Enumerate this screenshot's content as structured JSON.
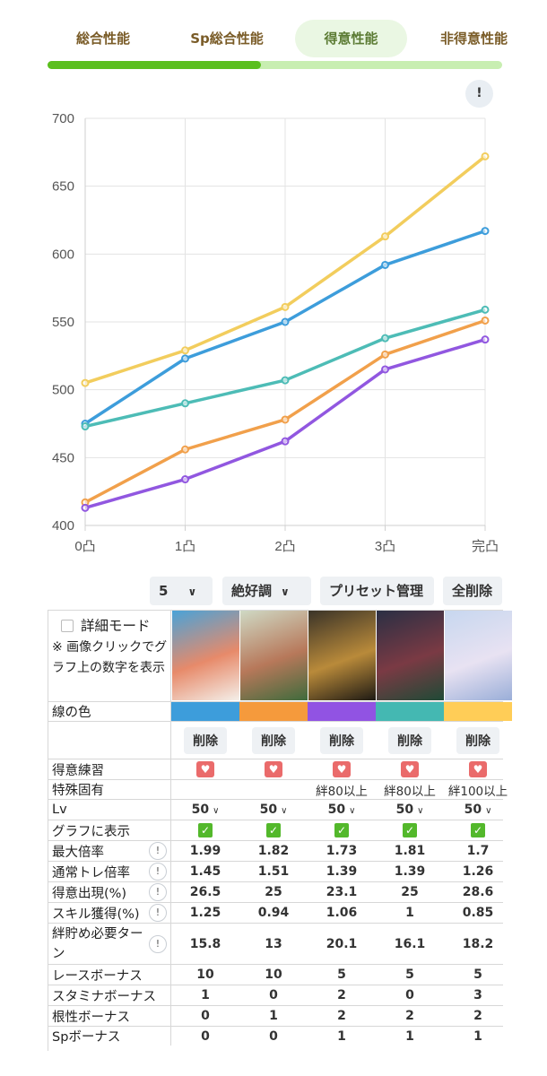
{
  "tabs": [
    {
      "label": "総合性能",
      "active": false
    },
    {
      "label": "Sp総合性能",
      "active": false
    },
    {
      "label": "得意性能",
      "active": true
    },
    {
      "label": "非得意性能",
      "active": false
    }
  ],
  "progress": {
    "fraction": 0.47
  },
  "info_button": "!",
  "chart_data": {
    "type": "line",
    "x": [
      "0凸",
      "1凸",
      "2凸",
      "3凸",
      "完凸"
    ],
    "ylim": [
      400,
      700
    ],
    "yticks": [
      400,
      450,
      500,
      550,
      600,
      650,
      700
    ],
    "grid": true,
    "series": [
      {
        "color": "#f2cd5d",
        "values": [
          505,
          529,
          561,
          613,
          672
        ]
      },
      {
        "color": "#3d9ddb",
        "values": [
          475,
          523,
          550,
          592,
          617
        ]
      },
      {
        "color": "#4dbcb6",
        "values": [
          473,
          490,
          507,
          538,
          559
        ]
      },
      {
        "color": "#f1a04b",
        "values": [
          417,
          456,
          478,
          526,
          551
        ]
      },
      {
        "color": "#9157e0",
        "values": [
          413,
          434,
          462,
          515,
          537
        ]
      }
    ]
  },
  "toolbar": {
    "level_select": "5",
    "condition_select": "絶好調",
    "preset_label": "プリセット管理",
    "clear_all_label": "全削除"
  },
  "table": {
    "detail_mode_label": "詳細モード",
    "hint_text": "※ 画像クリックでグラフ上の数字を表示",
    "line_color_label": "線の色",
    "delete_label": "削除",
    "columns": [
      {
        "line_color": "#3d9ddb",
        "card_colors": [
          "#4aa3d8",
          "#e78a6a",
          "#f4efe9"
        ],
        "specialty": "heart",
        "unique": "",
        "lv": "50",
        "show": true,
        "max_multiplier": "1.99",
        "normal_multiplier": "1.45",
        "specialty_rate": "26.5",
        "skill_gain": "1.25",
        "bond_turns": "15.8",
        "race_bonus": "10",
        "stamina_bonus": "1",
        "guts_bonus": "0",
        "sp_bonus": "0"
      },
      {
        "line_color": "#f59a3c",
        "card_colors": [
          "#cfd9c4",
          "#b7785a",
          "#3f6b3c"
        ],
        "specialty": "heart",
        "unique": "",
        "lv": "50",
        "show": true,
        "max_multiplier": "1.82",
        "normal_multiplier": "1.51",
        "specialty_rate": "25",
        "skill_gain": "0.94",
        "bond_turns": "13",
        "race_bonus": "10",
        "stamina_bonus": "0",
        "guts_bonus": "1",
        "sp_bonus": "0"
      },
      {
        "line_color": "#9153e3",
        "card_colors": [
          "#3a3328",
          "#b98a3a",
          "#1e1a14"
        ],
        "specialty": "heart",
        "unique": "絆80以上",
        "lv": "50",
        "show": true,
        "max_multiplier": "1.73",
        "normal_multiplier": "1.39",
        "specialty_rate": "23.1",
        "skill_gain": "1.06",
        "bond_turns": "20.1",
        "race_bonus": "5",
        "stamina_bonus": "2",
        "guts_bonus": "2",
        "sp_bonus": "1"
      },
      {
        "line_color": "#44b8b2",
        "card_colors": [
          "#2a2f44",
          "#7a3a44",
          "#1f4a36"
        ],
        "specialty": "heart",
        "unique": "絆80以上",
        "lv": "50",
        "show": true,
        "max_multiplier": "1.81",
        "normal_multiplier": "1.39",
        "specialty_rate": "25",
        "skill_gain": "1",
        "bond_turns": "16.1",
        "race_bonus": "5",
        "stamina_bonus": "0",
        "guts_bonus": "2",
        "sp_bonus": "1"
      },
      {
        "line_color": "#ffcd57",
        "card_colors": [
          "#c7d7ef",
          "#e8e2f2",
          "#9aaed8"
        ],
        "specialty": "heart",
        "unique": "絆100以上",
        "lv": "50",
        "show": true,
        "max_multiplier": "1.7",
        "normal_multiplier": "1.26",
        "specialty_rate": "28.6",
        "skill_gain": "0.85",
        "bond_turns": "18.2",
        "race_bonus": "5",
        "stamina_bonus": "3",
        "guts_bonus": "2",
        "sp_bonus": "1"
      }
    ],
    "rows": [
      {
        "key": "specialty",
        "label": "得意練習",
        "info": false
      },
      {
        "key": "unique",
        "label": "特殊固有",
        "info": false
      },
      {
        "key": "lv",
        "label": "Lv",
        "info": false
      },
      {
        "key": "show",
        "label": "グラフに表示",
        "info": false
      },
      {
        "key": "max_multiplier",
        "label": "最大倍率",
        "info": true
      },
      {
        "key": "normal_multiplier",
        "label": "通常トレ倍率",
        "info": true
      },
      {
        "key": "specialty_rate",
        "label": "得意出現(%)",
        "info": true
      },
      {
        "key": "skill_gain",
        "label": "スキル獲得(%)",
        "info": true
      },
      {
        "key": "bond_turns",
        "label": "絆貯め必要ターン",
        "info": true
      },
      {
        "key": "race_bonus",
        "label": "レースボーナス",
        "info": false
      },
      {
        "key": "stamina_bonus",
        "label": "スタミナボーナス",
        "info": false
      },
      {
        "key": "guts_bonus",
        "label": "根性ボーナス",
        "info": false
      },
      {
        "key": "sp_bonus",
        "label": "Spボーナス",
        "info": false
      }
    ]
  }
}
